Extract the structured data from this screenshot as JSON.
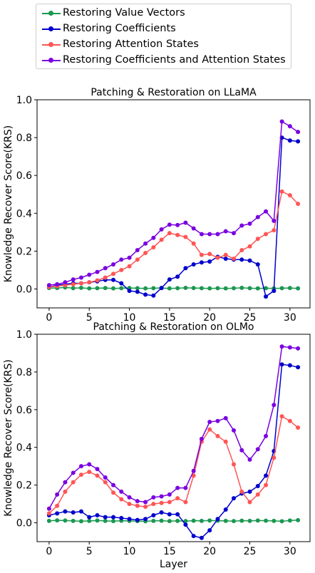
{
  "legend": {
    "items": [
      {
        "label": "Restoring Value Vectors",
        "color": "#1a9850"
      },
      {
        "label": "Restoring Coefficients",
        "color": "#0000cc"
      },
      {
        "label": "Restoring Attention States",
        "color": "#ff5555"
      },
      {
        "label": "Restoring Coefficients and Attention States",
        "color": "#7a00e0"
      }
    ]
  },
  "chart_data": [
    {
      "type": "line",
      "title": "Patching & Restoration on LLaMA",
      "xlabel": "",
      "ylabel": "Knowledge Recover Score(KRS)",
      "xlim": [
        -1.5,
        32.5
      ],
      "ylim": [
        -0.1,
        1.0
      ],
      "xticks": [
        "0",
        "5",
        "10",
        "15",
        "20",
        "25",
        "30"
      ],
      "yticks": [
        "0.0",
        "0.2",
        "0.4",
        "0.6",
        "0.8",
        "1.0"
      ],
      "x": [
        0,
        1,
        2,
        3,
        4,
        5,
        6,
        7,
        8,
        9,
        10,
        11,
        12,
        13,
        14,
        15,
        16,
        17,
        18,
        19,
        20,
        21,
        22,
        23,
        24,
        25,
        26,
        27,
        28,
        29,
        30,
        31
      ],
      "series": [
        {
          "name": "Restoring Value Vectors",
          "color": "#1a9850",
          "values": [
            0.005,
            0.005,
            0.008,
            0.004,
            0.006,
            0.003,
            0.004,
            0.005,
            0.003,
            0.004,
            0.005,
            0.004,
            0.003,
            0.004,
            0.005,
            0.003,
            0.004,
            0.006,
            0.005,
            0.004,
            0.003,
            0.004,
            0.003,
            0.004,
            0.006,
            0.004,
            0.003,
            0.004,
            0.003,
            0.004,
            0.005,
            0.003
          ]
        },
        {
          "name": "Restoring Coefficients",
          "color": "#0000cc",
          "values": [
            0.01,
            0.02,
            0.025,
            0.03,
            0.03,
            0.035,
            0.04,
            0.048,
            0.048,
            0.03,
            -0.01,
            -0.015,
            -0.03,
            -0.035,
            0.005,
            0.05,
            0.065,
            0.11,
            0.13,
            0.14,
            0.145,
            0.17,
            0.16,
            0.155,
            0.155,
            0.15,
            0.13,
            -0.04,
            -0.01,
            0.8,
            0.785,
            0.78
          ]
        },
        {
          "name": "Restoring Attention States",
          "color": "#ff5555",
          "values": [
            0.01,
            0.015,
            0.02,
            0.025,
            0.03,
            0.035,
            0.045,
            0.06,
            0.08,
            0.1,
            0.12,
            0.155,
            0.19,
            0.22,
            0.26,
            0.295,
            0.285,
            0.275,
            0.24,
            0.18,
            0.185,
            0.165,
            0.18,
            0.16,
            0.205,
            0.225,
            0.265,
            0.29,
            0.31,
            0.515,
            0.495,
            0.45
          ]
        },
        {
          "name": "Restoring Coefficients and Attention States",
          "color": "#7a00e0",
          "values": [
            0.02,
            0.025,
            0.035,
            0.05,
            0.06,
            0.075,
            0.09,
            0.11,
            0.13,
            0.155,
            0.165,
            0.205,
            0.24,
            0.27,
            0.315,
            0.34,
            0.338,
            0.35,
            0.32,
            0.29,
            0.29,
            0.29,
            0.305,
            0.295,
            0.335,
            0.345,
            0.38,
            0.41,
            0.36,
            0.885,
            0.86,
            0.83
          ]
        }
      ]
    },
    {
      "type": "line",
      "title": "Patching & Restoration on OLMo",
      "xlabel": "Layer",
      "ylabel": "Knowledge Recover Score(KRS)",
      "xlim": [
        -1.5,
        32.5
      ],
      "ylim": [
        -0.1,
        1.0
      ],
      "xticks": [
        "0",
        "5",
        "10",
        "15",
        "20",
        "25",
        "30"
      ],
      "yticks": [
        "0.0",
        "0.2",
        "0.4",
        "0.6",
        "0.8",
        "1.0"
      ],
      "x": [
        0,
        1,
        2,
        3,
        4,
        5,
        6,
        7,
        8,
        9,
        10,
        11,
        12,
        13,
        14,
        15,
        16,
        17,
        18,
        19,
        20,
        21,
        22,
        23,
        24,
        25,
        26,
        27,
        28,
        29,
        30,
        31
      ],
      "series": [
        {
          "name": "Restoring Value Vectors",
          "color": "#1a9850",
          "values": [
            0.01,
            0.013,
            0.012,
            0.01,
            0.008,
            0.01,
            0.012,
            0.01,
            0.009,
            0.011,
            0.01,
            0.009,
            0.008,
            0.01,
            0.011,
            0.009,
            0.01,
            0.009,
            0.011,
            0.01,
            0.012,
            0.011,
            0.01,
            0.009,
            0.011,
            0.01,
            0.012,
            0.011,
            0.01,
            0.008,
            0.012,
            0.014
          ]
        },
        {
          "name": "Restoring Coefficients",
          "color": "#0000cc",
          "values": [
            0.04,
            0.05,
            0.06,
            0.055,
            0.06,
            0.03,
            0.04,
            0.03,
            0.03,
            0.025,
            0.02,
            0.015,
            0.02,
            0.04,
            0.055,
            0.045,
            0.045,
            -0.01,
            -0.07,
            -0.08,
            -0.04,
            0.02,
            0.07,
            0.13,
            0.155,
            0.165,
            0.195,
            0.25,
            0.38,
            0.84,
            0.835,
            0.825
          ]
        },
        {
          "name": "Restoring Attention States",
          "color": "#ff5555",
          "values": [
            0.05,
            0.09,
            0.165,
            0.215,
            0.255,
            0.27,
            0.25,
            0.215,
            0.16,
            0.125,
            0.1,
            0.09,
            0.085,
            0.1,
            0.105,
            0.11,
            0.13,
            0.11,
            0.25,
            0.43,
            0.495,
            0.46,
            0.43,
            0.31,
            0.165,
            0.11,
            0.15,
            0.2,
            0.345,
            0.565,
            0.54,
            0.505
          ]
        },
        {
          "name": "Restoring Coefficients and Attention States",
          "color": "#7a00e0",
          "values": [
            0.075,
            0.15,
            0.215,
            0.265,
            0.3,
            0.31,
            0.285,
            0.24,
            0.2,
            0.165,
            0.135,
            0.115,
            0.11,
            0.135,
            0.14,
            0.15,
            0.185,
            0.185,
            0.275,
            0.445,
            0.535,
            0.54,
            0.555,
            0.49,
            0.385,
            0.335,
            0.39,
            0.46,
            0.625,
            0.935,
            0.93,
            0.925
          ]
        }
      ]
    }
  ]
}
